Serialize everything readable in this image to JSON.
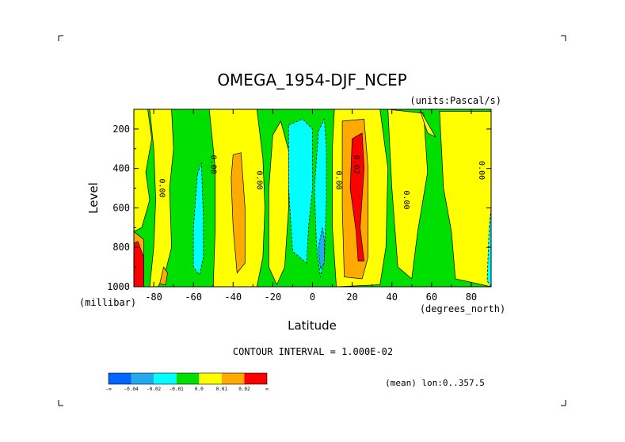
{
  "chart_data": {
    "type": "contour-fill",
    "title": "OMEGA_1954-DJF_NCEP",
    "units": "(units:Pascal/s)",
    "xlabel": "Latitude",
    "xunit": "(degrees_north)",
    "ylabel": "Level",
    "yunit": "(millibar)",
    "xlim": [
      -90,
      90
    ],
    "ylim": [
      1000,
      100
    ],
    "xticks": [
      -80,
      -60,
      -40,
      -20,
      0,
      20,
      40,
      60,
      80
    ],
    "xtick_labels": [
      "-80",
      "-60",
      "-40",
      "-20",
      "0",
      "20",
      "40",
      "60",
      "80"
    ],
    "yticks": [
      200,
      400,
      600,
      800,
      1000
    ],
    "ytick_labels": [
      "200",
      "400",
      "600",
      "800",
      "1000"
    ],
    "contour_interval_text": "CONTOUR INTERVAL = 1.000E-02",
    "mean_text": "(mean) lon:0..357.5",
    "levels": [
      -0.04,
      -0.02,
      -0.01,
      0.0,
      0.01,
      0.02
    ],
    "colorbar_labels": [
      "-∞",
      "-0.04",
      "-0.02",
      "-0.01",
      "0.0",
      "0.01",
      "0.02",
      "∞"
    ],
    "colors": [
      "#0066ff",
      "#22aaee",
      "#00ffff",
      "#00e000",
      "#ffff00",
      "#ffaa00",
      "#ff0000"
    ],
    "contour_labels": [
      {
        "text": "0.00",
        "lat": -77,
        "lev": 500
      },
      {
        "text": "0.00",
        "lat": -51,
        "lev": 380
      },
      {
        "text": "0.00",
        "lat": -28,
        "lev": 460
      },
      {
        "text": "0.00",
        "lat": 12,
        "lev": 460
      },
      {
        "text": "0.02",
        "lat": 21,
        "lev": 380
      },
      {
        "text": "0.00",
        "lat": 46,
        "lev": 560
      },
      {
        "text": "0.00",
        "lat": 84,
        "lev": 410
      }
    ],
    "regions": [
      {
        "level": 0.0,
        "color_index": 3,
        "pts": [
          [
            -90,
            100
          ],
          [
            90,
            100
          ],
          [
            90,
            1000
          ],
          [
            -90,
            1000
          ]
        ]
      },
      {
        "level": 0.0,
        "color_index": 4,
        "pts": [
          [
            -90,
            100
          ],
          [
            -83,
            100
          ],
          [
            -81,
            250
          ],
          [
            -84,
            420
          ],
          [
            -82,
            560
          ],
          [
            -86,
            700
          ],
          [
            -90,
            720
          ]
        ]
      },
      {
        "level": 0.0,
        "color_index": 4,
        "pts": [
          [
            -82,
            100
          ],
          [
            -71,
            100
          ],
          [
            -70,
            300
          ],
          [
            -72,
            500
          ],
          [
            -71,
            800
          ],
          [
            -75,
            960
          ],
          [
            -78,
            1000
          ],
          [
            -82,
            1000
          ],
          [
            -80,
            800
          ],
          [
            -79,
            560
          ],
          [
            -80,
            300
          ]
        ]
      },
      {
        "level": 0.0,
        "color_index": 4,
        "pts": [
          [
            -52,
            100
          ],
          [
            -28,
            100
          ],
          [
            -25,
            350
          ],
          [
            -24,
            600
          ],
          [
            -25,
            850
          ],
          [
            -28,
            1000
          ],
          [
            -50,
            1000
          ],
          [
            -49,
            700
          ],
          [
            -49,
            400
          ],
          [
            -51,
            200
          ]
        ]
      },
      {
        "level": 0.0,
        "color_index": 4,
        "pts": [
          [
            -16,
            160
          ],
          [
            -12,
            310
          ],
          [
            -12,
            600
          ],
          [
            -14,
            900
          ],
          [
            -18,
            990
          ],
          [
            -22,
            900
          ],
          [
            -22,
            500
          ],
          [
            -20,
            230
          ]
        ]
      },
      {
        "level": 0.0,
        "color_index": 4,
        "pts": [
          [
            11,
            100
          ],
          [
            34,
            100
          ],
          [
            38,
            400
          ],
          [
            37,
            800
          ],
          [
            34,
            990
          ],
          [
            12,
            1000
          ],
          [
            10,
            700
          ],
          [
            10,
            300
          ]
        ]
      },
      {
        "level": 0.0,
        "color_index": 4,
        "pts": [
          [
            38,
            100
          ],
          [
            56,
            120
          ],
          [
            58,
            420
          ],
          [
            53,
            720
          ],
          [
            50,
            960
          ],
          [
            43,
            900
          ],
          [
            40,
            500
          ]
        ]
      },
      {
        "level": 0.0,
        "color_index": 4,
        "pts": [
          [
            54,
            100
          ],
          [
            62,
            240
          ],
          [
            58,
            220
          ]
        ]
      },
      {
        "level": 0.0,
        "color_index": 4,
        "pts": [
          [
            64,
            110
          ],
          [
            90,
            110
          ],
          [
            90,
            1000
          ],
          [
            72,
            960
          ],
          [
            70,
            720
          ],
          [
            66,
            500
          ]
        ]
      },
      {
        "level": -0.01,
        "color_index": 2,
        "pts": [
          [
            -58,
            430
          ],
          [
            -56,
            370
          ],
          [
            -55,
            650
          ],
          [
            -55,
            850
          ],
          [
            -57,
            940
          ],
          [
            -60,
            900
          ],
          [
            -60,
            700
          ]
        ]
      },
      {
        "level": -0.01,
        "color_index": 2,
        "pts": [
          [
            -12,
            180
          ],
          [
            -5,
            150
          ],
          [
            0,
            200
          ],
          [
            0,
            500
          ],
          [
            -2,
            700
          ],
          [
            -3,
            880
          ],
          [
            -10,
            820
          ],
          [
            -12,
            500
          ]
        ]
      },
      {
        "level": -0.01,
        "color_index": 2,
        "pts": [
          [
            3,
            210
          ],
          [
            6,
            150
          ],
          [
            7,
            300
          ],
          [
            7,
            560
          ],
          [
            6,
            860
          ],
          [
            4,
            950
          ],
          [
            2,
            790
          ],
          [
            1,
            500
          ]
        ]
      },
      {
        "level": -0.01,
        "color_index": 2,
        "pts": [
          [
            89,
            700
          ],
          [
            90,
            600
          ],
          [
            90,
            1000
          ],
          [
            88,
            970
          ]
        ]
      },
      {
        "level": -0.04,
        "color_index": 1,
        "pts": [
          [
            5,
            700
          ],
          [
            6,
            760
          ],
          [
            6,
            880
          ],
          [
            4,
            910
          ],
          [
            3,
            800
          ]
        ]
      },
      {
        "level": 0.01,
        "color_index": 5,
        "pts": [
          [
            -40,
            330
          ],
          [
            -36,
            320
          ],
          [
            -34,
            600
          ],
          [
            -34,
            880
          ],
          [
            -38,
            930
          ],
          [
            -40,
            700
          ],
          [
            -41,
            450
          ]
        ]
      },
      {
        "level": 0.01,
        "color_index": 5,
        "pts": [
          [
            15,
            160
          ],
          [
            26,
            150
          ],
          [
            28,
            400
          ],
          [
            28,
            850
          ],
          [
            25,
            960
          ],
          [
            16,
            950
          ],
          [
            15,
            600
          ]
        ]
      },
      {
        "level": 0.01,
        "color_index": 5,
        "pts": [
          [
            -90,
            720
          ],
          [
            -85,
            760
          ],
          [
            -85,
            980
          ],
          [
            -90,
            1000
          ]
        ]
      },
      {
        "level": 0.01,
        "color_index": 5,
        "pts": [
          [
            -75,
            900
          ],
          [
            -73,
            930
          ],
          [
            -74,
            990
          ],
          [
            -77,
            985
          ]
        ]
      },
      {
        "level": 0.02,
        "color_index": 6,
        "pts": [
          [
            20,
            250
          ],
          [
            25,
            220
          ],
          [
            26,
            400
          ],
          [
            24,
            700
          ],
          [
            26,
            870
          ],
          [
            23,
            870
          ],
          [
            22,
            720
          ],
          [
            19,
            500
          ]
        ]
      },
      {
        "level": 0.02,
        "color_index": 6,
        "pts": [
          [
            -90,
            780
          ],
          [
            -88,
            770
          ],
          [
            -85,
            850
          ],
          [
            -85,
            1000
          ],
          [
            -90,
            1000
          ]
        ]
      }
    ]
  },
  "colorbar": {
    "ticks": [
      "-∞",
      "-0.04",
      "-0.02",
      "-0.01",
      "0.0",
      "0.01",
      "0.02",
      "∞"
    ]
  }
}
